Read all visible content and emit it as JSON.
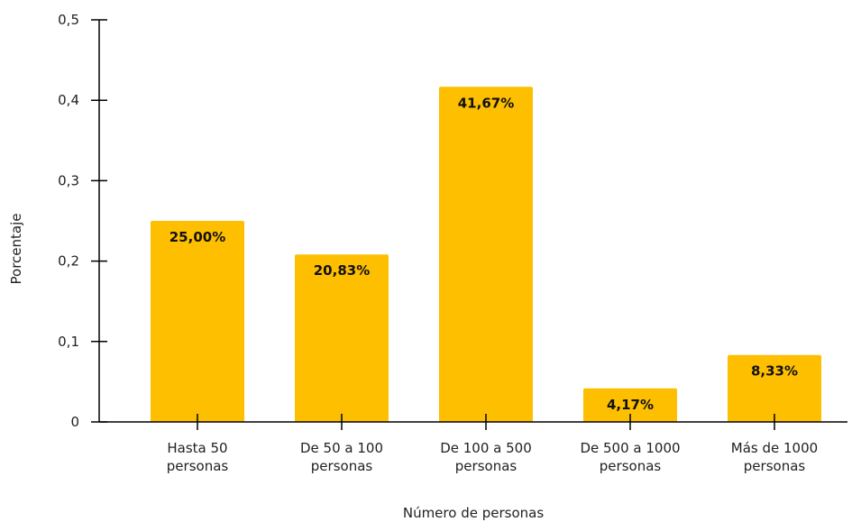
{
  "chart_data": {
    "type": "bar",
    "categories": [
      [
        "Hasta 50",
        "personas"
      ],
      [
        "De 50 a 100",
        "personas"
      ],
      [
        "De 100 a 500",
        "personas"
      ],
      [
        "De 500 a 1000",
        "personas"
      ],
      [
        "Más de 1000",
        "personas"
      ]
    ],
    "values": [
      0.25,
      0.2083,
      0.4167,
      0.0417,
      0.0833
    ],
    "data_labels": [
      "25,00%",
      "20,83%",
      "41,67%",
      "4,17%",
      "8,33%"
    ],
    "xlabel": "Número de personas",
    "ylabel": "Porcentaje",
    "ylim": [
      0,
      0.5
    ],
    "yticks": [
      0,
      0.1,
      0.2,
      0.3,
      0.4,
      0.5
    ],
    "ytick_labels": [
      "0",
      "0,1",
      "0,2",
      "0,3",
      "0,4",
      "0,5"
    ],
    "bar_color": "#FDBF00",
    "axis_color": "#000000",
    "grid": false
  }
}
